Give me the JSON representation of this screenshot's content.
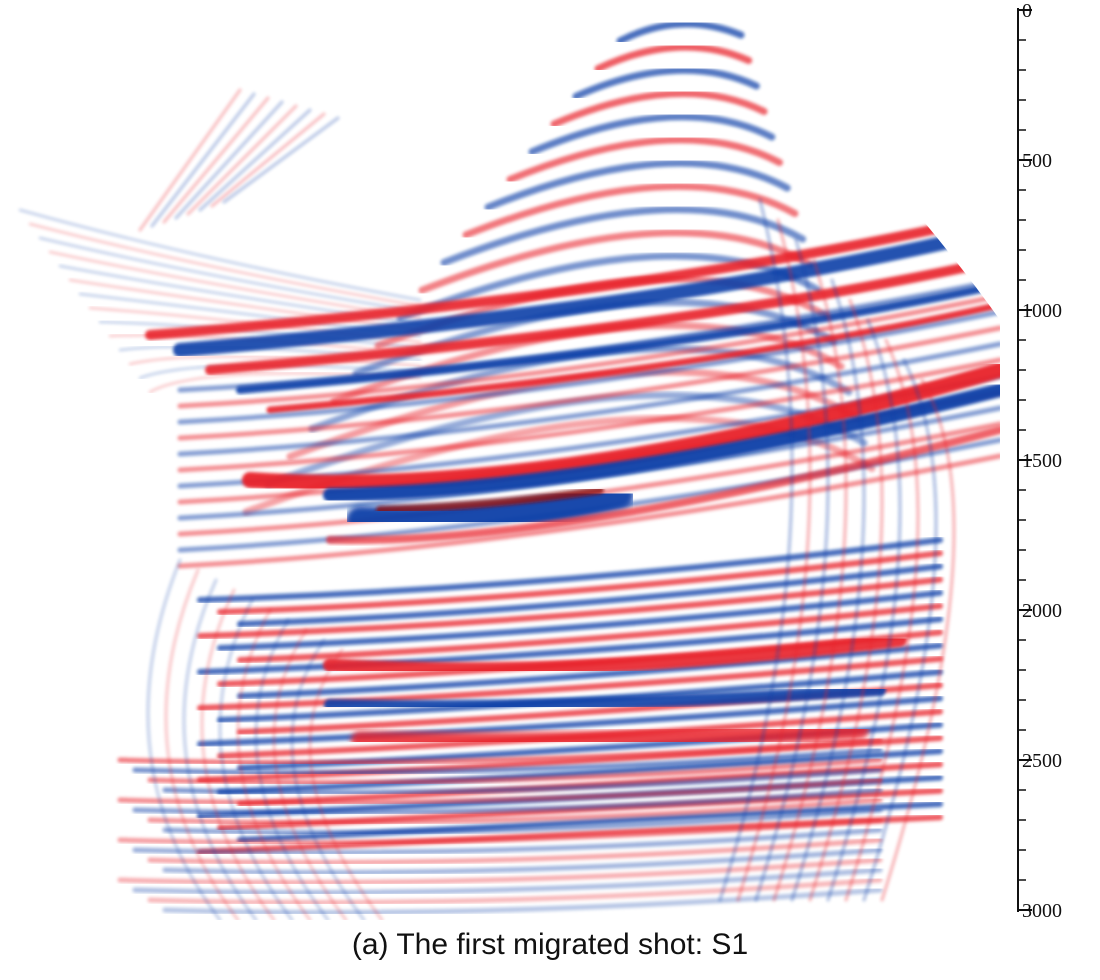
{
  "colors": {
    "positive": "#e8232a",
    "negative": "#0a3fa8",
    "background": "#ffffff",
    "axis": "#111111"
  },
  "depth_axis": {
    "ticks": [
      "0",
      "500",
      "1000",
      "1500",
      "2000",
      "2500",
      "3000"
    ],
    "range": [
      0,
      3000
    ]
  },
  "caption": "(a) The first migrated shot: S1"
}
